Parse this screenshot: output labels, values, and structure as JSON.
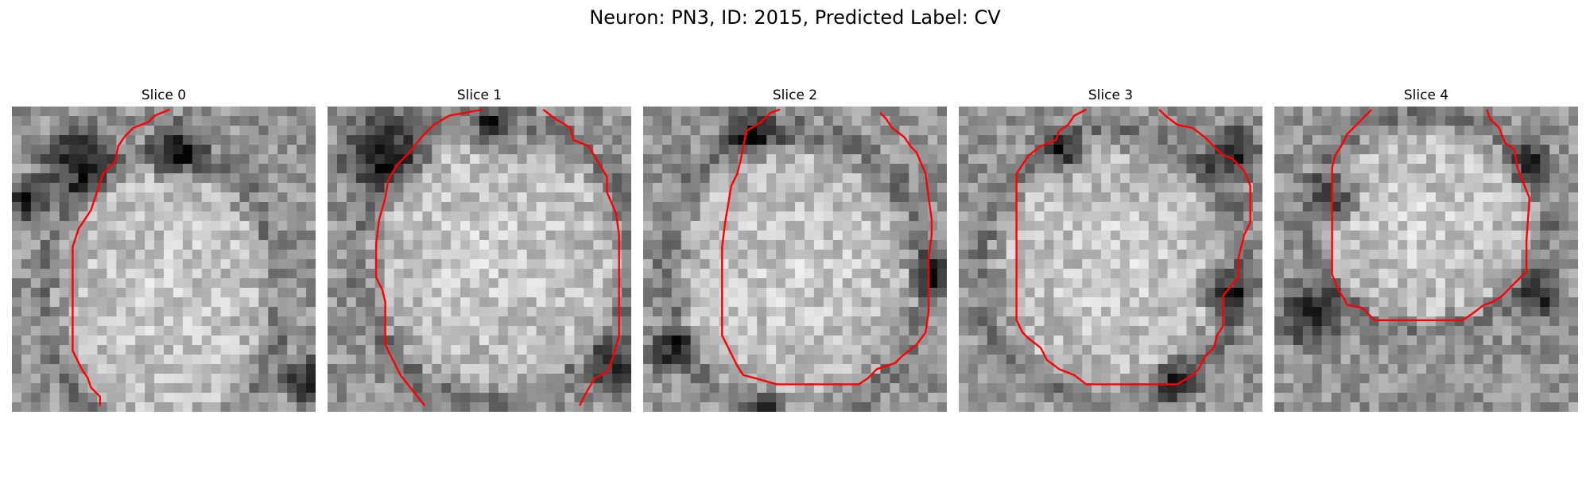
{
  "title": "Neuron: PN3, ID: 2015, Predicted Label: CV",
  "contour_color": "#ff0000",
  "slices": [
    {
      "label": "Slice 0"
    },
    {
      "label": "Slice 1"
    },
    {
      "label": "Slice 2"
    },
    {
      "label": "Slice 3"
    },
    {
      "label": "Slice 4"
    }
  ]
}
